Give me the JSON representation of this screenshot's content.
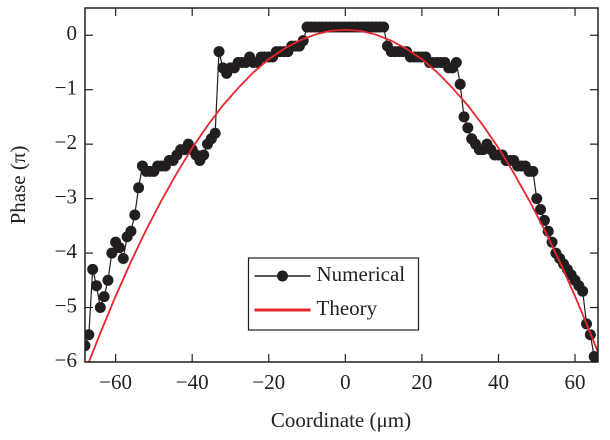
{
  "chart_data": {
    "type": "line",
    "x_label": "Coordinate (μm)",
    "y_label": "Phase (π)",
    "xlim": [
      -68,
      66
    ],
    "ylim": [
      -6,
      0.5
    ],
    "xticks": [
      {
        "value": -60,
        "label": "−60"
      },
      {
        "value": -40,
        "label": "−40"
      },
      {
        "value": -20,
        "label": "−20"
      },
      0,
      20,
      40,
      60
    ],
    "yticks": [
      0,
      {
        "value": -1,
        "label": "−1"
      },
      {
        "value": -2,
        "label": "−2"
      },
      {
        "value": -3,
        "label": "−3"
      },
      {
        "value": -4,
        "label": "−4"
      },
      {
        "value": -5,
        "label": "−5"
      },
      {
        "value": -6,
        "label": "−6"
      }
    ],
    "legend": "lower center",
    "series": [
      {
        "name": "Numerical",
        "color": "#231f20",
        "marker": "circle",
        "x": [
          -68,
          -67,
          -66,
          -65,
          -64,
          -63,
          -62,
          -61,
          -60,
          -59,
          -58,
          -57,
          -56,
          -55,
          -54,
          -53,
          -52,
          -51,
          -50,
          -49,
          -48,
          -47,
          -46,
          -45,
          -44,
          -43,
          -42,
          -41,
          -40,
          -39,
          -38,
          -37,
          -36,
          -35,
          -34,
          -33,
          -32,
          -31,
          -30,
          -29,
          -28,
          -27,
          -26,
          -25,
          -24,
          -23,
          -22,
          -21,
          -20,
          -19,
          -18,
          -17,
          -16,
          -15,
          -14,
          -13,
          -12,
          -11,
          -10,
          -9,
          -8,
          -7,
          -6,
          -5,
          -4,
          -3,
          -2,
          -1,
          0,
          1,
          2,
          3,
          4,
          5,
          6,
          7,
          8,
          9,
          10,
          11,
          12,
          13,
          14,
          15,
          16,
          17,
          18,
          19,
          20,
          21,
          22,
          23,
          24,
          25,
          26,
          27,
          28,
          29,
          30,
          31,
          32,
          33,
          34,
          35,
          36,
          37,
          38,
          39,
          40,
          41,
          42,
          43,
          44,
          45,
          46,
          47,
          48,
          49,
          50,
          51,
          52,
          53,
          54,
          55,
          56,
          57,
          58,
          59,
          60,
          61,
          62,
          63,
          64,
          65,
          66
        ],
        "values": [
          -5.7,
          -5.5,
          -4.3,
          -4.6,
          -5.0,
          -4.8,
          -4.5,
          -4.0,
          -3.8,
          -3.9,
          -4.1,
          -3.7,
          -3.6,
          -3.3,
          -2.8,
          -2.4,
          -2.5,
          -2.5,
          -2.5,
          -2.4,
          -2.4,
          -2.4,
          -2.3,
          -2.3,
          -2.2,
          -2.1,
          -2.1,
          -2.0,
          -2.1,
          -2.2,
          -2.3,
          -2.2,
          -2.0,
          -1.9,
          -1.8,
          -0.3,
          -0.6,
          -0.7,
          -0.6,
          -0.6,
          -0.5,
          -0.5,
          -0.5,
          -0.4,
          -0.5,
          -0.5,
          -0.4,
          -0.4,
          -0.4,
          -0.4,
          -0.3,
          -0.3,
          -0.3,
          -0.3,
          -0.2,
          -0.2,
          -0.2,
          -0.1,
          0.15,
          0.15,
          0.15,
          0.15,
          0.15,
          0.15,
          0.15,
          0.15,
          0.15,
          0.15,
          0.15,
          0.15,
          0.15,
          0.15,
          0.15,
          0.15,
          0.15,
          0.15,
          0.15,
          0.15,
          0.15,
          -0.2,
          -0.3,
          -0.3,
          -0.3,
          -0.3,
          -0.3,
          -0.4,
          -0.4,
          -0.4,
          -0.4,
          -0.4,
          -0.5,
          -0.5,
          -0.5,
          -0.5,
          -0.5,
          -0.6,
          -0.6,
          -0.5,
          -0.9,
          -1.5,
          -1.7,
          -1.9,
          -2.0,
          -2.1,
          -2.1,
          -2.0,
          -2.1,
          -2.2,
          -2.2,
          -2.2,
          -2.3,
          -2.3,
          -2.3,
          -2.4,
          -2.4,
          -2.4,
          -2.5,
          -2.5,
          -3.0,
          -3.2,
          -3.4,
          -3.6,
          -3.8,
          -4.0,
          -4.1,
          -4.2,
          -4.3,
          -4.4,
          -4.5,
          -4.6,
          -4.7,
          -5.3,
          -5.5,
          -5.9,
          -6.0
        ]
      },
      {
        "name": "Theory",
        "color": "#e8262b",
        "x": [
          -68,
          -64,
          -60,
          -56,
          -52,
          -48,
          -44,
          -40,
          -36,
          -32,
          -28,
          -24,
          -20,
          -16,
          -12,
          -8,
          -4,
          0,
          4,
          8,
          12,
          16,
          20,
          24,
          28,
          32,
          36,
          40,
          44,
          48,
          52,
          56,
          60,
          64,
          66
        ],
        "values": [
          -6.18,
          -5.47,
          -4.79,
          -4.16,
          -3.57,
          -3.03,
          -2.53,
          -2.07,
          -1.66,
          -1.29,
          -0.97,
          -0.68,
          -0.44,
          -0.25,
          -0.1,
          0.01,
          0.08,
          0.1,
          0.08,
          0.01,
          -0.1,
          -0.25,
          -0.44,
          -0.68,
          -0.97,
          -1.29,
          -1.66,
          -2.07,
          -2.53,
          -3.03,
          -3.57,
          -4.16,
          -4.79,
          -5.47,
          -5.82
        ]
      }
    ]
  }
}
